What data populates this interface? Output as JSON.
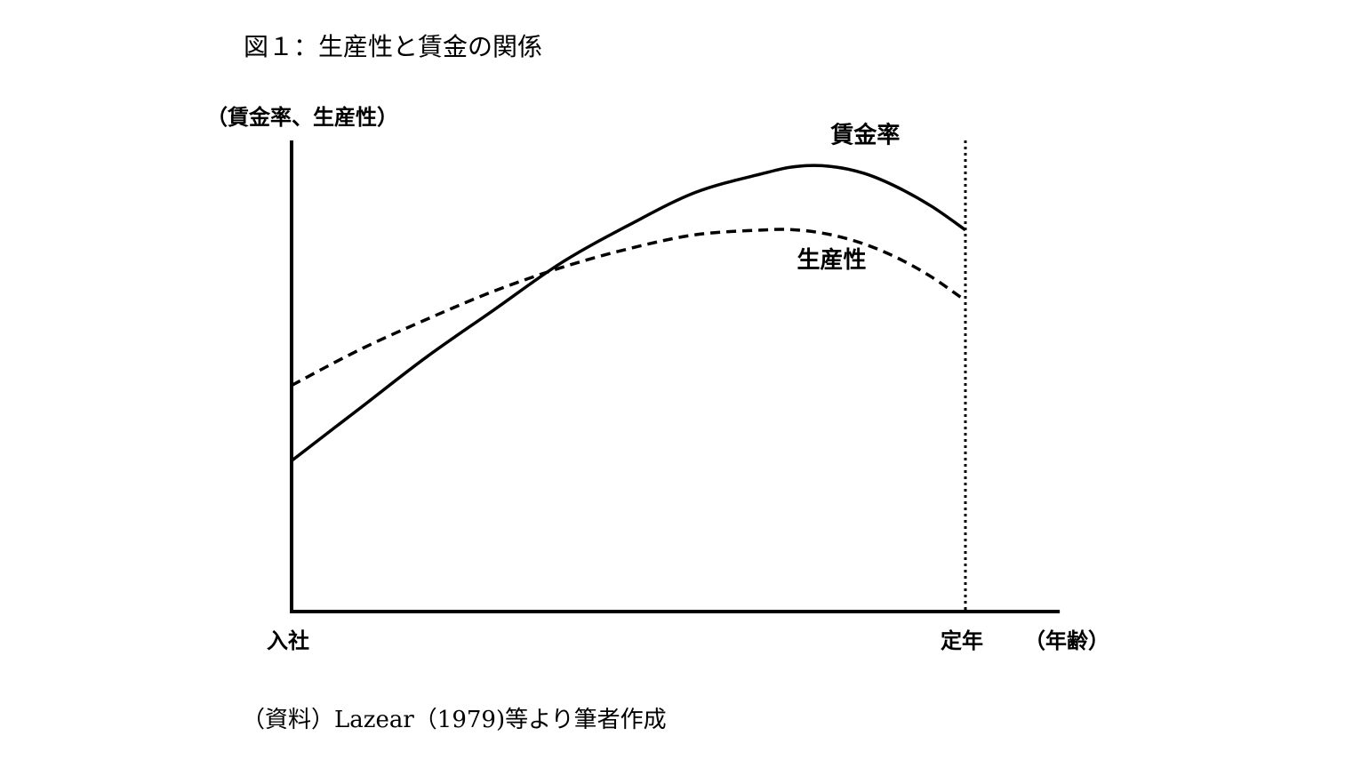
{
  "figure_title": "図１：生産性と賃金の関係",
  "source_note": "（資料）Lazear（1979)等より筆者作成",
  "chart_data": {
    "type": "line",
    "ylabel": "（賃金率、生産性）",
    "xlabel": "（年齢）",
    "x_start_label": "入社",
    "x_end_label": "定年",
    "xlim": [
      0,
      1.14
    ],
    "ylim": [
      0,
      1
    ],
    "retirement_marker": {
      "x": 1.0,
      "style": "dotted"
    },
    "grid": false,
    "legend": "inline labels",
    "series": [
      {
        "name": "賃金率",
        "line_style": "solid",
        "color": "#000000",
        "x": [
          0.0,
          0.1,
          0.2,
          0.3,
          0.4,
          0.5,
          0.6,
          0.7,
          0.75,
          0.8,
          0.85,
          0.9,
          0.95,
          1.0
        ],
        "y": [
          0.32,
          0.43,
          0.54,
          0.64,
          0.74,
          0.82,
          0.89,
          0.93,
          0.945,
          0.945,
          0.93,
          0.9,
          0.86,
          0.81
        ]
      },
      {
        "name": "生産性",
        "line_style": "dashed",
        "color": "#000000",
        "x": [
          0.0,
          0.1,
          0.2,
          0.3,
          0.4,
          0.5,
          0.6,
          0.7,
          0.75,
          0.8,
          0.85,
          0.9,
          0.95,
          1.0
        ],
        "y": [
          0.48,
          0.555,
          0.62,
          0.68,
          0.73,
          0.77,
          0.8,
          0.81,
          0.81,
          0.8,
          0.78,
          0.75,
          0.71,
          0.66
        ]
      }
    ],
    "series_label_anchors": [
      {
        "series": "賃金率",
        "x": 0.8,
        "y": 0.995
      },
      {
        "series": "生産性",
        "x": 0.75,
        "y": 0.73
      }
    ]
  }
}
